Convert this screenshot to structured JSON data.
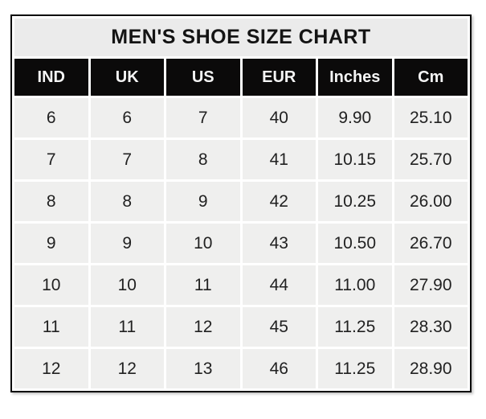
{
  "chart_data": {
    "type": "table",
    "title": "MEN'S SHOE SIZE CHART",
    "columns": [
      "IND",
      "UK",
      "US",
      "EUR",
      "Inches",
      "Cm"
    ],
    "rows": [
      [
        "6",
        "6",
        "7",
        "40",
        "9.90",
        "25.10"
      ],
      [
        "7",
        "7",
        "8",
        "41",
        "10.15",
        "25.70"
      ],
      [
        "8",
        "8",
        "9",
        "42",
        "10.25",
        "26.00"
      ],
      [
        "9",
        "9",
        "10",
        "43",
        "10.50",
        "26.70"
      ],
      [
        "10",
        "10",
        "11",
        "44",
        "11.00",
        "27.90"
      ],
      [
        "11",
        "11",
        "12",
        "45",
        "11.25",
        "28.30"
      ],
      [
        "12",
        "12",
        "13",
        "46",
        "11.25",
        "28.90"
      ]
    ]
  },
  "colors": {
    "border": "#0a0a0a",
    "title_bg": "#ebebeb",
    "header_bg": "#0b0a0a",
    "header_text": "#f5f5f5",
    "cell_bg": "#efefee",
    "cell_text": "#212121",
    "gridline": "#ffffff",
    "page_bg": "#ffffff"
  }
}
